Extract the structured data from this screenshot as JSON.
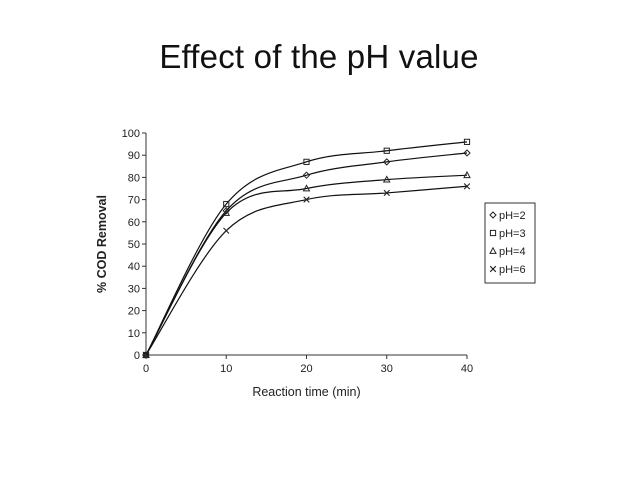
{
  "slide": {
    "title": "Effect of the pH value"
  },
  "chart_data": {
    "type": "scatter",
    "title": "Effect of the pH value",
    "xlabel": "Reaction time (min)",
    "ylabel": "% COD Removal",
    "xlim": [
      0,
      40
    ],
    "ylim": [
      0,
      100
    ],
    "xticks": [
      0,
      10,
      20,
      30,
      40
    ],
    "yticks": [
      0,
      10,
      20,
      30,
      40,
      50,
      60,
      70,
      80,
      90,
      100
    ],
    "x": [
      0,
      10,
      20,
      30,
      40
    ],
    "grid": false,
    "legend_position": "right",
    "trendlines": true,
    "series": [
      {
        "name": "pH=2",
        "marker": "diamond",
        "values": [
          0,
          65,
          81,
          87,
          91
        ]
      },
      {
        "name": "pH=3",
        "marker": "square",
        "values": [
          0,
          68,
          87,
          92,
          96
        ]
      },
      {
        "name": "pH=4",
        "marker": "triangle",
        "values": [
          0,
          64,
          75,
          79,
          81
        ]
      },
      {
        "name": "pH=6",
        "marker": "cross",
        "values": [
          0,
          56,
          70,
          73,
          76
        ]
      }
    ]
  }
}
